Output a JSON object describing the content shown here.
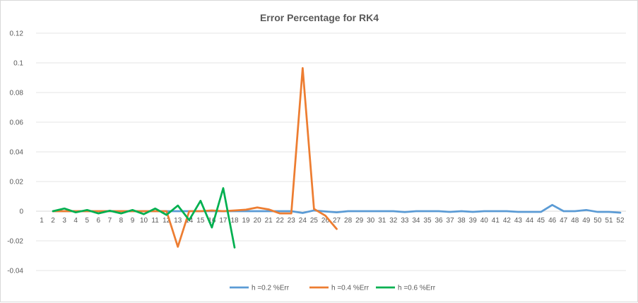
{
  "chart_data": {
    "type": "line",
    "title": "Error Percentage for RK4",
    "xlabel": "",
    "ylabel": "",
    "ylim": [
      -0.04,
      0.12
    ],
    "yticks": [
      -0.04,
      -0.02,
      0,
      0.02,
      0.04,
      0.06,
      0.08,
      0.1,
      0.12
    ],
    "ytick_labels": [
      "-0.04",
      "-0.02",
      "0",
      "0.02",
      "0.04",
      "0.06",
      "0.08",
      "0.1",
      "0.12"
    ],
    "categories": [
      "1",
      "2",
      "3",
      "4",
      "5",
      "6",
      "7",
      "8",
      "9",
      "10",
      "11",
      "12",
      "13",
      "14",
      "15",
      "16",
      "17",
      "18",
      "19",
      "20",
      "21",
      "22",
      "23",
      "24",
      "25",
      "26",
      "27",
      "28",
      "29",
      "30",
      "31",
      "32",
      "33",
      "34",
      "35",
      "36",
      "37",
      "38",
      "39",
      "40",
      "41",
      "42",
      "43",
      "44",
      "45",
      "46",
      "47",
      "48",
      "49",
      "50",
      "51",
      "52"
    ],
    "grid": true,
    "legend_position": "bottom",
    "series": [
      {
        "name": "h =0.2 %Err",
        "color": "#5b9bd5",
        "x": [
          2,
          3,
          4,
          5,
          6,
          7,
          8,
          9,
          10,
          11,
          12,
          13,
          14,
          15,
          16,
          17,
          18,
          19,
          20,
          21,
          22,
          23,
          24,
          25,
          26,
          27,
          28,
          29,
          30,
          31,
          32,
          33,
          34,
          35,
          36,
          37,
          38,
          39,
          40,
          41,
          42,
          43,
          44,
          45,
          46,
          47,
          48,
          49,
          50,
          51,
          52
        ],
        "values": [
          0,
          0,
          0,
          0,
          0,
          0,
          0,
          0,
          0,
          0,
          0,
          0,
          0,
          0,
          0,
          0,
          0,
          0,
          0,
          0,
          0,
          0,
          -0.0012,
          0.0005,
          -0.0002,
          -0.0008,
          0,
          0,
          0,
          0,
          0,
          -0.0006,
          0,
          0,
          0,
          -0.0005,
          0,
          -0.0005,
          0,
          0,
          0,
          -0.0005,
          -0.0005,
          -0.0005,
          0.0042,
          0,
          0,
          0.0008,
          -0.0005,
          -0.0005,
          -0.001
        ]
      },
      {
        "name": "h =0.4 %Err",
        "color": "#ed7d31",
        "x": [
          2,
          3,
          4,
          5,
          6,
          7,
          8,
          9,
          10,
          11,
          12,
          13,
          14,
          15,
          16,
          17,
          18,
          19,
          20,
          21,
          22,
          23,
          24,
          25,
          26,
          27
        ],
        "values": [
          0,
          0,
          0,
          0,
          0,
          0,
          0,
          0,
          0,
          0,
          0,
          -0.024,
          0,
          0,
          0.0005,
          0,
          0.0005,
          0.001,
          0.0025,
          0.0012,
          -0.0015,
          -0.0015,
          0.0965,
          0.0015,
          -0.003,
          -0.012
        ]
      },
      {
        "name": "h =0.6 %Err",
        "color": "#00b050",
        "x": [
          2,
          3,
          4,
          5,
          6,
          7,
          8,
          9,
          10,
          11,
          12,
          13,
          14,
          15,
          16,
          17,
          18
        ],
        "values": [
          0,
          0.0018,
          -0.0008,
          0.0008,
          -0.0015,
          0.0003,
          -0.0015,
          0.0008,
          -0.002,
          0.0018,
          -0.0025,
          0.0038,
          -0.006,
          0.007,
          -0.011,
          0.0155,
          -0.0245
        ]
      }
    ]
  }
}
